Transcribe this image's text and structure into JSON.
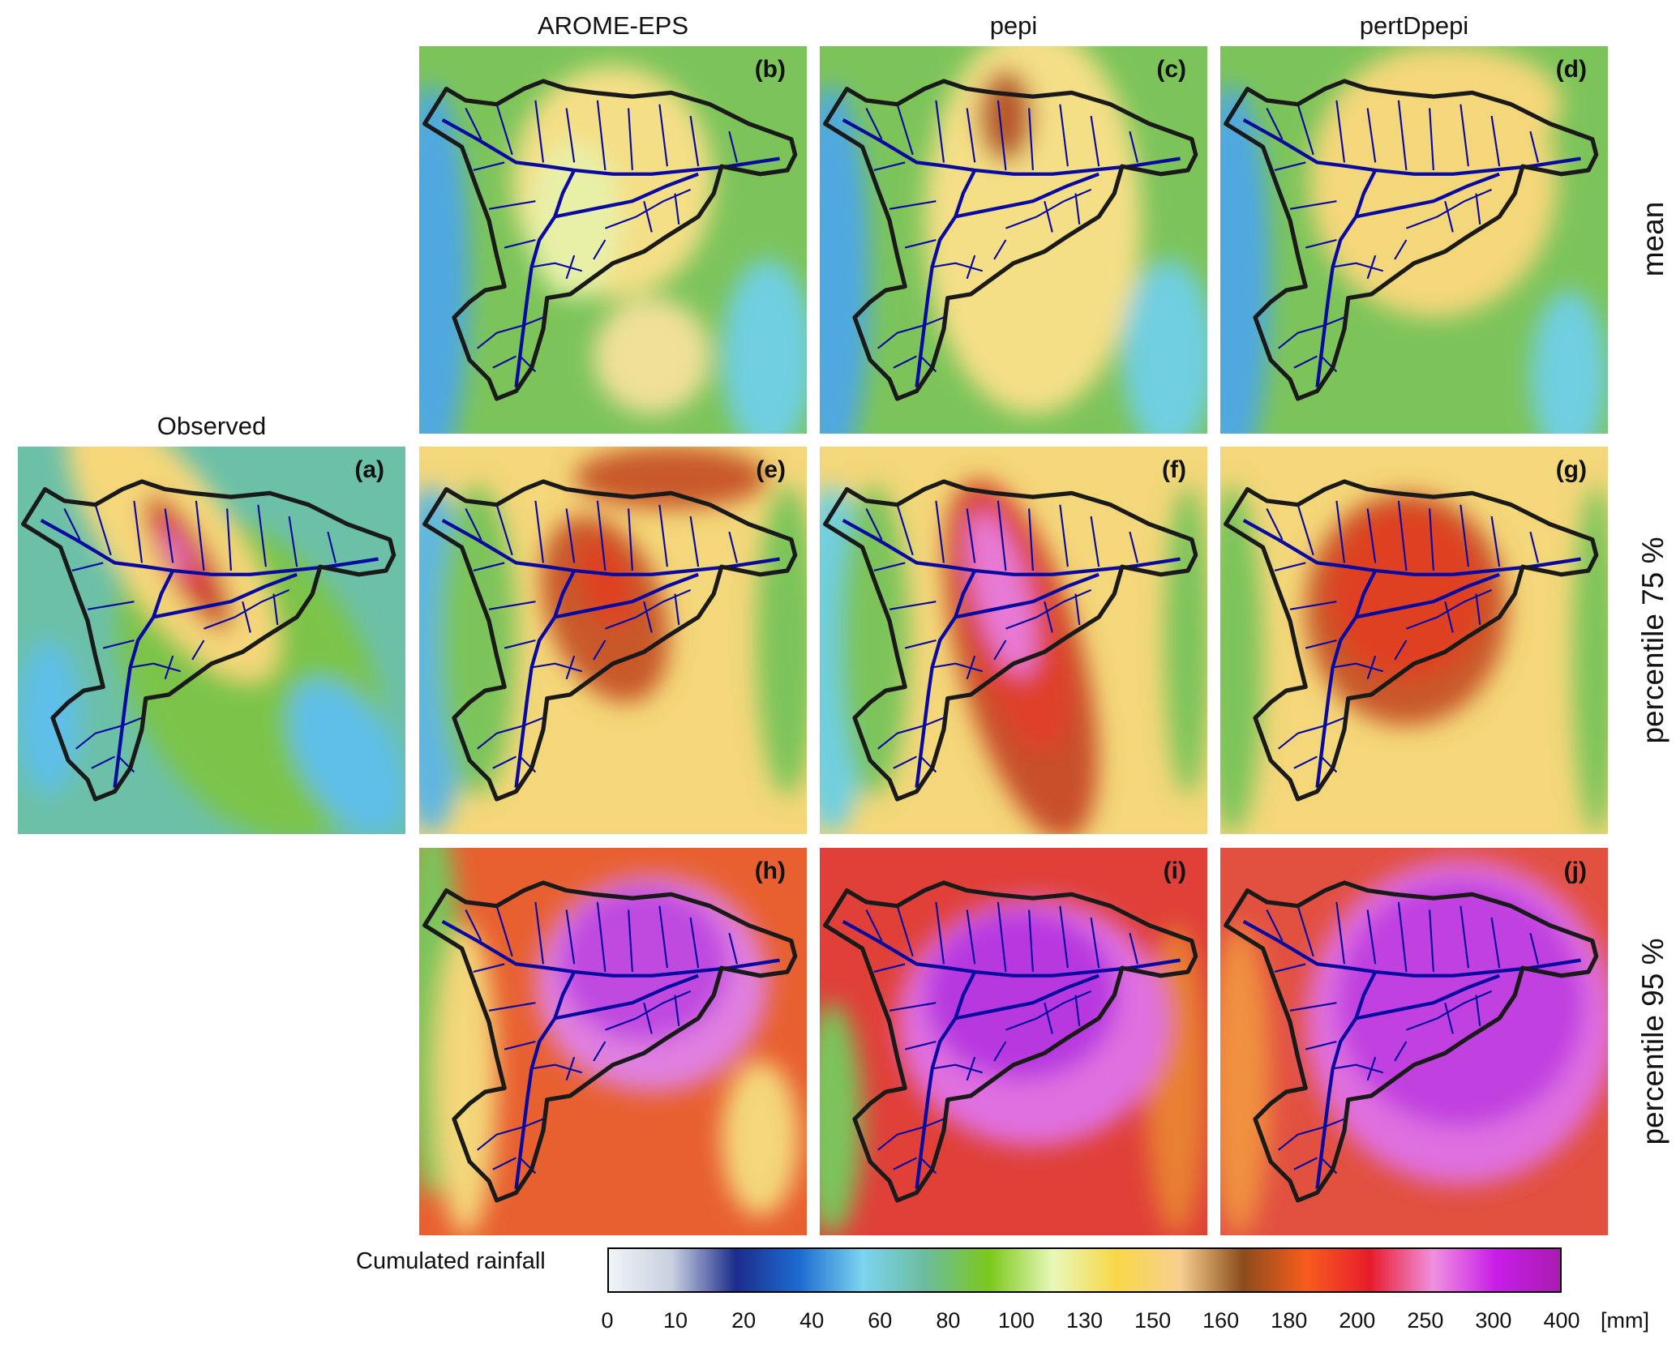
{
  "columns": [
    "AROME-EPS",
    "pepi",
    "pertDpepi"
  ],
  "rows": [
    "mean",
    "percentile 75 %",
    "percentile 95 %"
  ],
  "observed": {
    "title": "Observed",
    "label": "(a)"
  },
  "panels": [
    {
      "label": "(b)",
      "column": "AROME-EPS",
      "row": "mean"
    },
    {
      "label": "(c)",
      "column": "pepi",
      "row": "mean"
    },
    {
      "label": "(d)",
      "column": "pertDpepi",
      "row": "mean"
    },
    {
      "label": "(e)",
      "column": "AROME-EPS",
      "row": "percentile 75 %"
    },
    {
      "label": "(f)",
      "column": "pepi",
      "row": "percentile 75 %"
    },
    {
      "label": "(g)",
      "column": "pertDpepi",
      "row": "percentile 75 %"
    },
    {
      "label": "(h)",
      "column": "AROME-EPS",
      "row": "percentile 95 %"
    },
    {
      "label": "(i)",
      "column": "pepi",
      "row": "percentile 95 %"
    },
    {
      "label": "(j)",
      "column": "pertDpepi",
      "row": "percentile 95 %"
    }
  ],
  "colorbar": {
    "title": "Cumulated rainfall",
    "unit": "[mm]",
    "ticks": [
      "0",
      "10",
      "20",
      "40",
      "60",
      "80",
      "100",
      "130",
      "150",
      "160",
      "180",
      "200",
      "250",
      "300",
      "400"
    ],
    "colors": [
      "#eef4f6",
      "#c8d0e0",
      "#1c2c8c",
      "#1c6cd0",
      "#7cd4f0",
      "#6cbc9c",
      "#7cc81c",
      "#e8f8b8",
      "#f8d848",
      "#f8d090",
      "#8c4c1c",
      "#f85c1c",
      "#e81c2c",
      "#f090e0",
      "#c81ce8",
      "#a81cb0"
    ],
    "catchment_outline_color": "#1a1a1a",
    "river_color": "#0a0aa0"
  }
}
